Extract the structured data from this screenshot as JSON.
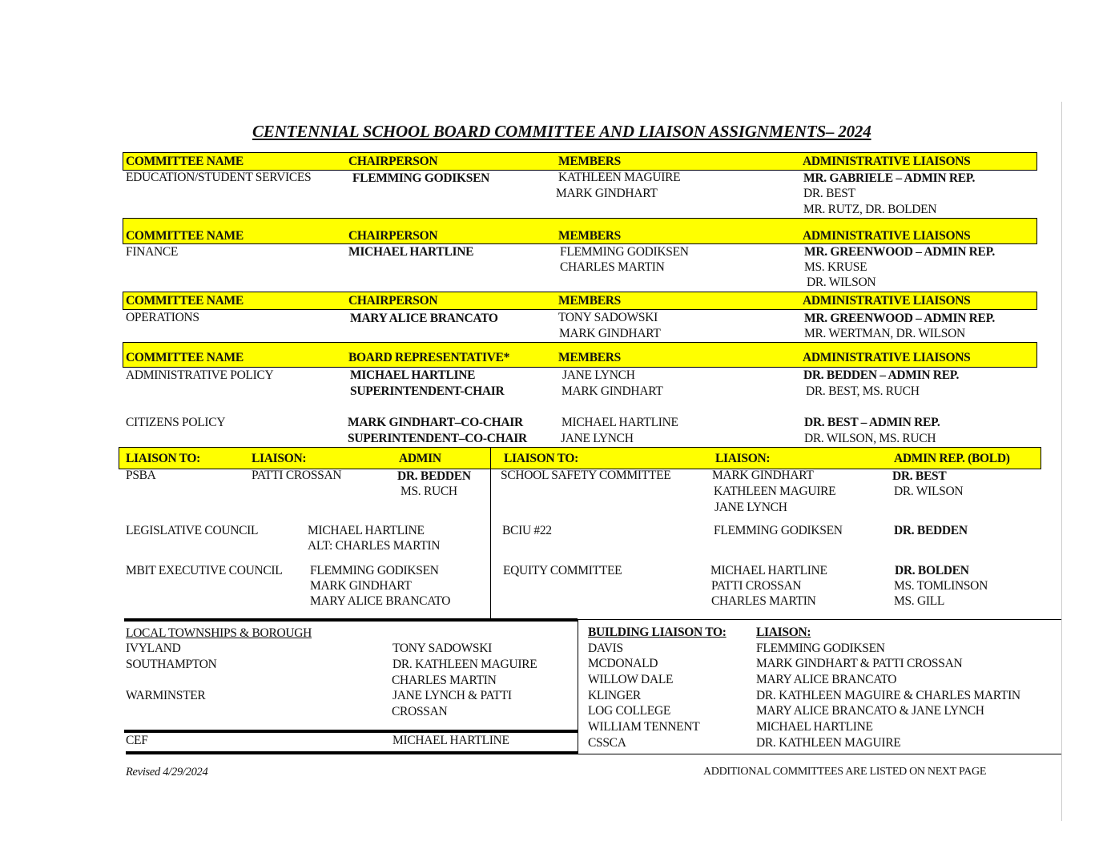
{
  "title": "CENTENNIAL SCHOOL BOARD  COMMITTEE AND LIAISON ASSIGNMENTS– 2024",
  "highlight_color": "#ffff00",
  "headers": {
    "committee_name": "COMMITTEE NAME",
    "chairperson": "CHAIRPERSON",
    "board_rep": "BOARD REPRESENTATIVE*",
    "members": "MEMBERS",
    "admin_liaisons": "ADMINISTRATIVE LIAISONS"
  },
  "committees": [
    {
      "name": "EDUCATION/STUDENT SERVICES",
      "chair": [
        "FLEMMING GODIKSEN"
      ],
      "members": [
        "KATHLEEN MAGUIRE",
        "MARK GINDHART"
      ],
      "liaisons": [
        "MR. GABRIELE – ADMIN REP.",
        "DR. BEST",
        "MR. RUTZ, DR. BOLDEN"
      ]
    },
    {
      "name": "FINANCE",
      "chair": [
        "MICHAEL HARTLINE"
      ],
      "members": [
        "FLEMMING GODIKSEN",
        "CHARLES MARTIN"
      ],
      "liaisons": [
        "MR. GREENWOOD – ADMIN REP.",
        "MS. KRUSE",
        "DR. WILSON"
      ]
    },
    {
      "name": "OPERATIONS",
      "chair": [
        "MARY ALICE BRANCATO"
      ],
      "members": [
        "TONY SADOWSKI",
        "MARK GINDHART"
      ],
      "liaisons": [
        "MR. GREENWOOD – ADMIN REP.",
        "MR. WERTMAN, DR. WILSON"
      ]
    },
    {
      "name": "ADMINISTRATIVE POLICY",
      "chair": [
        "MICHAEL HARTLINE",
        "SUPERINTENDENT-CHAIR"
      ],
      "members": [
        "JANE LYNCH",
        "MARK GINDHART"
      ],
      "liaisons": [
        "DR. BEDDEN – ADMIN REP.",
        "DR. BEST, MS. RUCH"
      ]
    },
    {
      "name": "CITIZENS POLICY",
      "chair": [
        "MARK GINDHART–CO-CHAIR",
        "SUPERINTENDENT–CO-CHAIR"
      ],
      "members": [
        "MICHAEL HARTLINE",
        "JANE LYNCH"
      ],
      "liaisons": [
        "DR. BEST – ADMIN REP.",
        "DR. WILSON, MS. RUCH"
      ]
    }
  ],
  "liaison_headers": {
    "liaison_to": "LIAISON TO:",
    "liaison": "LIAISON:",
    "admin": "ADMIN",
    "admin_rep": "ADMIN REP. (BOLD)"
  },
  "liaisons_left": [
    {
      "to": "PSBA",
      "liaison": [
        "PATTI CROSSAN"
      ],
      "admin": [
        "DR. BEDDEN",
        "MS. RUCH"
      ]
    },
    {
      "to": "LEGISLATIVE COUNCIL",
      "liaison": [
        "MICHAEL HARTLINE",
        "ALT: CHARLES MARTIN"
      ]
    },
    {
      "to": "MBIT EXECUTIVE COUNCIL",
      "liaison": [
        "FLEMMING GODIKSEN",
        "MARK GINDHART",
        "MARY ALICE BRANCATO"
      ]
    }
  ],
  "liaisons_right": [
    {
      "to": "SCHOOL SAFETY COMMITTEE",
      "liaison": [
        "MARK GINDHART",
        "KATHLEEN MAGUIRE",
        "JANE LYNCH"
      ],
      "admin": [
        "DR. BEST",
        "DR. WILSON"
      ]
    },
    {
      "to": "BCIU #22",
      "liaison": [
        "FLEMMING GODIKSEN"
      ],
      "admin": [
        "DR. BEDDEN"
      ]
    },
    {
      "to": "EQUITY COMMITTEE",
      "liaison": [
        "MICHAEL HARTLINE",
        "PATTI CROSSAN",
        "CHARLES MARTIN"
      ],
      "admin": [
        "DR. BOLDEN",
        "MS. TOMLINSON",
        "MS. GILL"
      ]
    }
  ],
  "townships": {
    "heading": "LOCAL TOWNSHIPS & BOROUGH",
    "rows": [
      {
        "name": "IVYLAND",
        "liaison": [
          "TONY SADOWSKI"
        ]
      },
      {
        "name": "SOUTHAMPTON",
        "liaison": [
          "DR. KATHLEEN MAGUIRE",
          "CHARLES MARTIN"
        ]
      },
      {
        "name": "WARMINSTER",
        "liaison": [
          "JANE LYNCH & PATTI",
          "CROSSAN"
        ]
      },
      {
        "name": "CEF",
        "liaison": [
          "MICHAEL HARTLINE"
        ]
      }
    ]
  },
  "buildings": {
    "heading_to": "BUILDING LIAISON TO:",
    "heading_liaison": "LIAISON:",
    "rows": [
      {
        "name": "DAVIS",
        "liaison": "FLEMMING GODIKSEN"
      },
      {
        "name": "MCDONALD",
        "liaison": "MARK GINDHART & PATTI CROSSAN"
      },
      {
        "name": "WILLOW DALE",
        "liaison": "MARY ALICE BRANCATO"
      },
      {
        "name": "KLINGER",
        "liaison": "DR. KATHLEEN MAGUIRE & CHARLES MARTIN"
      },
      {
        "name": "LOG COLLEGE",
        "liaison": "MARY ALICE BRANCATO & JANE LYNCH"
      },
      {
        "name": "WILLIAM TENNENT",
        "liaison": "MICHAEL HARTLINE"
      },
      {
        "name": "CSSCA",
        "liaison": "DR. KATHLEEN MAGUIRE"
      }
    ]
  },
  "footer": {
    "revised": "Revised 4/29/2024",
    "note": "ADDITIONAL COMMITTEES ARE LISTED ON NEXT PAGE"
  }
}
